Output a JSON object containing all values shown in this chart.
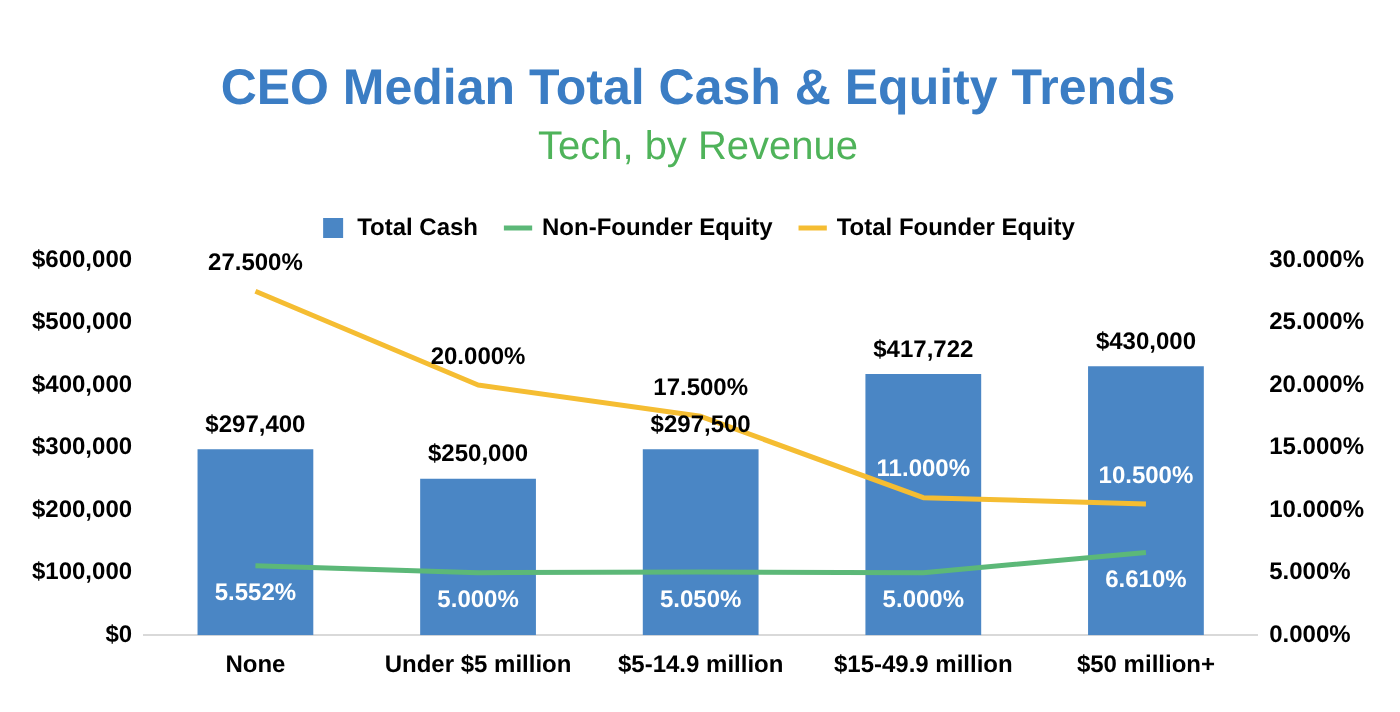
{
  "chart_data": {
    "type": "bar",
    "title": "CEO Median Total Cash & Equity Trends",
    "subtitle": "Tech, by Revenue",
    "categories": [
      "None",
      "Under $5 million",
      "$5-14.9 million",
      "$15-49.9 million",
      "$50 million+"
    ],
    "series": [
      {
        "name": "Total Cash",
        "color": "#4a86c5",
        "values": [
          297400,
          250000,
          297500,
          417722,
          430000
        ],
        "value_labels": [
          "$297,400",
          "$250,000",
          "$297,500",
          "$417,722",
          "$430,000"
        ]
      },
      {
        "name": "Non-Founder Equity",
        "type": "line",
        "axis": "y2",
        "color": "#5cb878",
        "values": [
          5.552,
          5.0,
          5.05,
          5.0,
          6.61
        ],
        "value_labels": [
          "5.552%",
          "5.000%",
          "5.050%",
          "5.000%",
          "6.610%"
        ]
      },
      {
        "name": "Total Founder Equity",
        "type": "line",
        "axis": "y2",
        "color": "#f5bd32",
        "values": [
          27.5,
          20.0,
          17.5,
          11.0,
          10.5
        ],
        "value_labels": [
          "27.500%",
          "20.000%",
          "17.500%",
          "11.000%",
          "10.500%"
        ]
      }
    ],
    "ylim": [
      0,
      600000
    ],
    "yticks": [
      {
        "value": 0,
        "label": "$0"
      },
      {
        "value": 100000,
        "label": "$100,000"
      },
      {
        "value": 200000,
        "label": "$200,000"
      },
      {
        "value": 300000,
        "label": "$300,000"
      },
      {
        "value": 400000,
        "label": "$400,000"
      },
      {
        "value": 500000,
        "label": "$500,000"
      },
      {
        "value": 600000,
        "label": "$600,000"
      }
    ],
    "y2lim": [
      0,
      30
    ],
    "y2ticks": [
      {
        "value": 0,
        "label": "0.000%"
      },
      {
        "value": 5,
        "label": "5.000%"
      },
      {
        "value": 10,
        "label": "10.000%"
      },
      {
        "value": 15,
        "label": "15.000%"
      },
      {
        "value": 20,
        "label": "20.000%"
      },
      {
        "value": 25,
        "label": "25.000%"
      },
      {
        "value": 30,
        "label": "30.000%"
      }
    ],
    "legend": "top",
    "grid": false,
    "marker": "none",
    "line_style": "solid"
  }
}
